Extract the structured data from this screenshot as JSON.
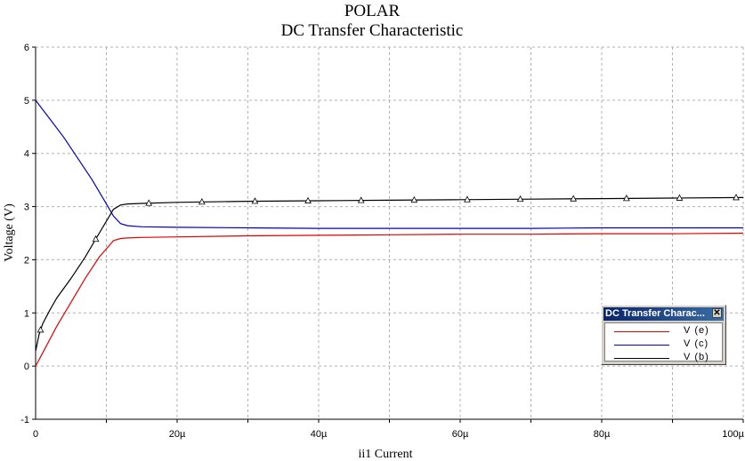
{
  "window": {
    "title": "POLAR",
    "subtitle": "DC Transfer Characteristic"
  },
  "colors": {
    "grid": "#b0b0b0",
    "axis": "#000000",
    "ve": "#e00000",
    "vc": "#0000c0",
    "vb": "#000000"
  },
  "legend": {
    "title": "DC Transfer Charac...",
    "close_icon": "close-icon",
    "entries": [
      {
        "label": "V (e)",
        "color": "#e00000"
      },
      {
        "label": "V (c)",
        "color": "#0000c0"
      },
      {
        "label": "V (b)",
        "color": "#000000"
      }
    ]
  },
  "chart_data": {
    "type": "line",
    "title": "POLAR",
    "subtitle": "DC Transfer Characteristic",
    "xlabel": "ii1 Current",
    "ylabel": "Voltage (V)",
    "xlim": [
      0,
      100
    ],
    "ylim": [
      -1,
      6
    ],
    "x_ticks": [
      {
        "value": 0,
        "label": "0"
      },
      {
        "value": 20,
        "label": "20µ"
      },
      {
        "value": 40,
        "label": "40µ"
      },
      {
        "value": 60,
        "label": "60µ"
      },
      {
        "value": 80,
        "label": "80µ"
      },
      {
        "value": 100,
        "label": "100µ"
      }
    ],
    "y_ticks": [
      -1,
      0,
      1,
      2,
      3,
      4,
      5,
      6
    ],
    "grid": true,
    "legend_position": "right",
    "series": [
      {
        "name": "V (e)",
        "x": [
          0,
          1,
          3,
          5,
          7,
          9,
          11,
          12,
          13,
          15,
          20,
          30,
          40,
          50,
          60,
          70,
          80,
          90,
          100
        ],
        "y": [
          0,
          0.25,
          0.75,
          1.2,
          1.65,
          2.05,
          2.36,
          2.4,
          2.41,
          2.42,
          2.43,
          2.45,
          2.46,
          2.47,
          2.48,
          2.48,
          2.49,
          2.49,
          2.5
        ]
      },
      {
        "name": "V (c)",
        "x": [
          0,
          2,
          4,
          6,
          8,
          10,
          11,
          12,
          13,
          15,
          20,
          30,
          40,
          50,
          60,
          70,
          80,
          90,
          100
        ],
        "y": [
          5.0,
          4.65,
          4.3,
          3.9,
          3.5,
          3.05,
          2.82,
          2.68,
          2.64,
          2.62,
          2.61,
          2.6,
          2.59,
          2.59,
          2.59,
          2.59,
          2.6,
          2.6,
          2.6
        ]
      },
      {
        "name": "V (b)",
        "x": [
          0,
          0.5,
          1,
          2,
          3,
          5,
          7,
          9,
          11,
          12,
          13,
          15,
          20,
          30,
          40,
          50,
          60,
          70,
          80,
          90,
          100
        ],
        "y": [
          0.28,
          0.6,
          0.8,
          1.05,
          1.28,
          1.65,
          2.05,
          2.5,
          2.95,
          3.03,
          3.05,
          3.06,
          3.08,
          3.1,
          3.11,
          3.12,
          3.13,
          3.14,
          3.15,
          3.16,
          3.17
        ]
      }
    ],
    "markers": {
      "series": "V (b)",
      "symbol": "triangle",
      "x": [
        0.7,
        8.5,
        16,
        23.5,
        31,
        38.5,
        46,
        53.5,
        61,
        68.5,
        76,
        83.5,
        91,
        99
      ]
    }
  }
}
